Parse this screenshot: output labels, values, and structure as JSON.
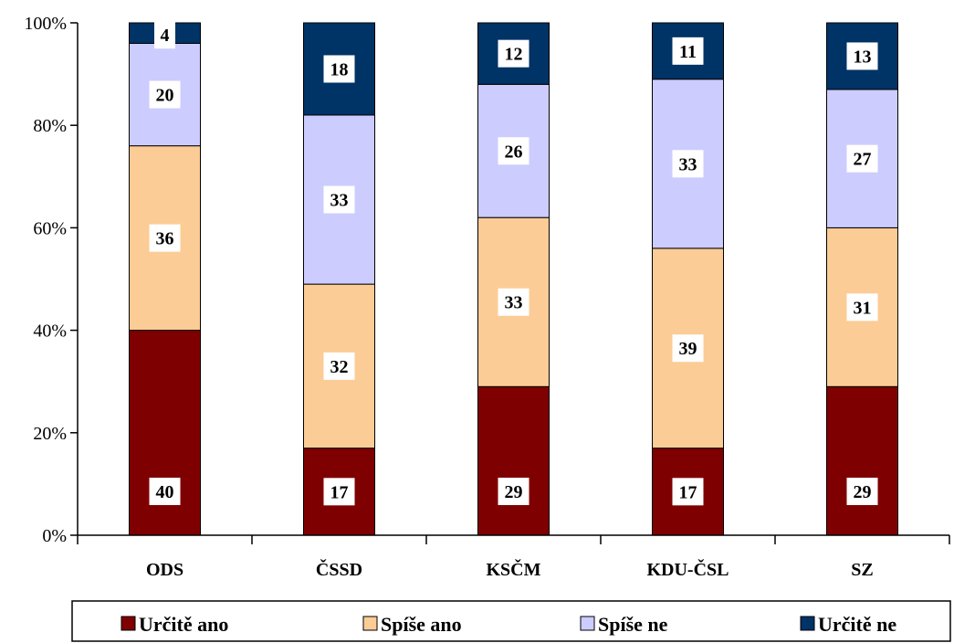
{
  "chart_data": {
    "type": "bar",
    "stacked": true,
    "percent_axis": true,
    "categories": [
      "ODS",
      "ČSSD",
      "KSČM",
      "KDU-ČSL",
      "SZ"
    ],
    "series": [
      {
        "name": "Určitě ano",
        "color": "#7f0000",
        "values": [
          40,
          17,
          29,
          17,
          29
        ]
      },
      {
        "name": "Spíše ano",
        "color": "#fccc96",
        "values": [
          36,
          32,
          33,
          39,
          31
        ]
      },
      {
        "name": "Spíše ne",
        "color": "#ccccff",
        "values": [
          20,
          33,
          26,
          33,
          27
        ]
      },
      {
        "name": "Určitě ne",
        "color": "#003366",
        "values": [
          4,
          18,
          12,
          11,
          13
        ]
      }
    ],
    "yticks": [
      "0%",
      "20%",
      "40%",
      "60%",
      "80%",
      "100%"
    ],
    "ylim": [
      0,
      100
    ],
    "grid": false,
    "legend_position": "bottom"
  }
}
